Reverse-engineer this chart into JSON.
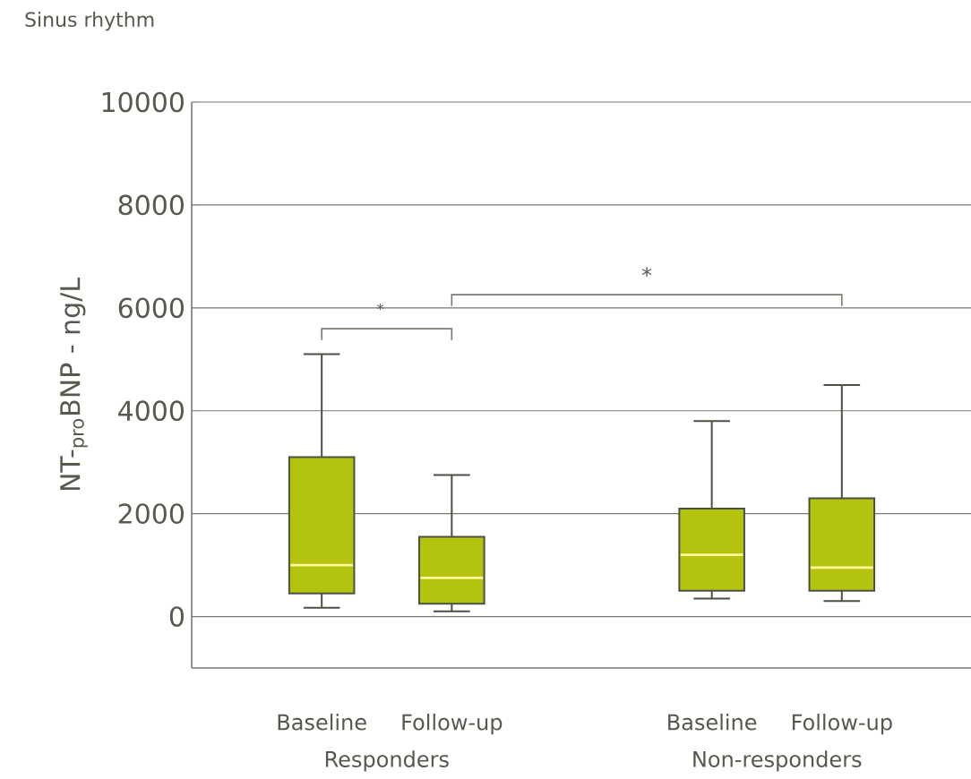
{
  "chart_data": {
    "type": "box",
    "title": "Sinus rhythm",
    "ylabel": "NT-$_{pro}$BNP - ng/L",
    "categories": [
      "Baseline",
      "Follow-up",
      "Baseline",
      "Follow-up"
    ],
    "boxes": [
      {
        "low": 170,
        "q1": 450,
        "median": 1000,
        "q3": 3100,
        "high": 5100
      },
      {
        "low": 100,
        "q1": 250,
        "median": 750,
        "q3": 1550,
        "high": 2750
      },
      {
        "low": 350,
        "q1": 500,
        "median": 1200,
        "q3": 2100,
        "high": 3800
      },
      {
        "low": 300,
        "q1": 500,
        "median": 950,
        "q3": 2300,
        "high": 4500
      }
    ],
    "color": "#b4c40e",
    "ylim": [
      -1000,
      10000
    ],
    "yticks": [
      0,
      2000,
      4000,
      6000,
      8000,
      10000
    ],
    "grid": "y",
    "annotations": [
      "*",
      "*",
      "Responders",
      "Non-responders"
    ]
  }
}
